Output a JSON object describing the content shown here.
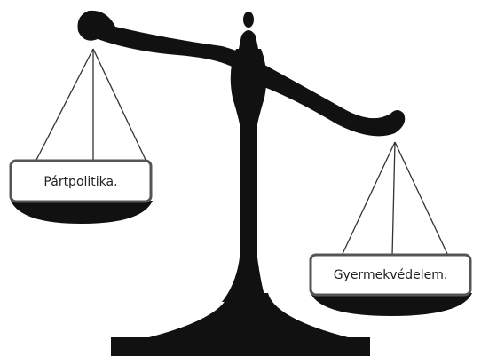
{
  "pans": [
    {
      "label": "Pártpolitika."
    },
    {
      "label": "Gyermekvédelem."
    }
  ]
}
